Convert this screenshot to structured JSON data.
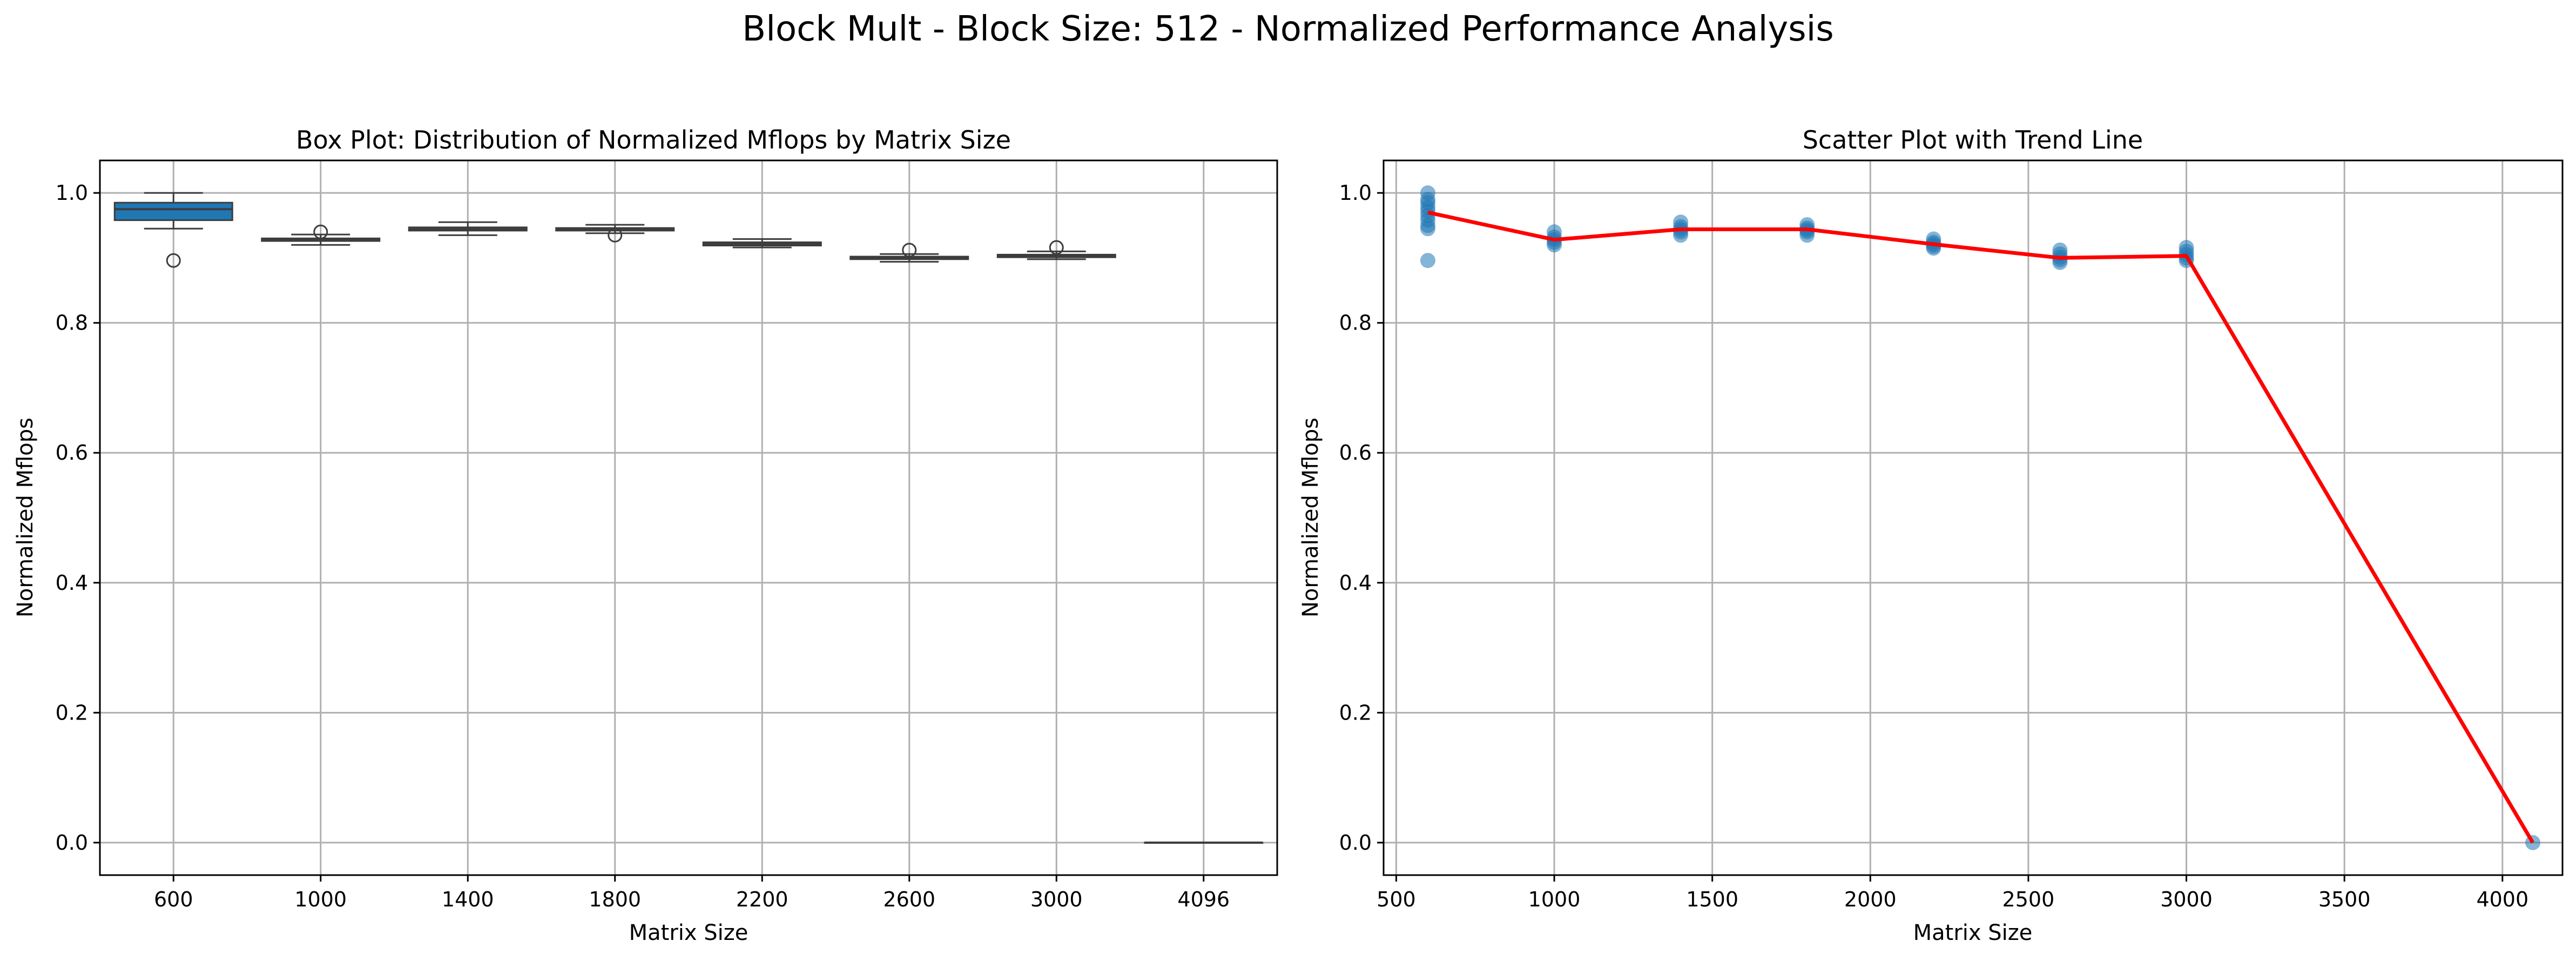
{
  "figure": {
    "title": "Block Mult - Block Size: 512 - Normalized Performance Analysis"
  },
  "chart_data": [
    {
      "type": "box",
      "title": "Box Plot: Distribution of Normalized Mflops by Matrix Size",
      "xlabel": "Matrix Size",
      "ylabel": "Normalized Mflops",
      "ylim": [
        -0.05,
        1.05
      ],
      "yticks": [
        "0.0",
        "0.2",
        "0.4",
        "0.6",
        "0.8",
        "1.0"
      ],
      "grid": true,
      "box_color": "#1f77b4",
      "categories": [
        "600",
        "1000",
        "1400",
        "1800",
        "2200",
        "2600",
        "3000",
        "4096"
      ],
      "boxes": [
        {
          "category": "600",
          "whisker_low": 0.945,
          "q1": 0.958,
          "median": 0.975,
          "q3": 0.985,
          "whisker_high": 1.0,
          "outliers": [
            0.896
          ]
        },
        {
          "category": "1000",
          "whisker_low": 0.92,
          "q1": 0.926,
          "median": 0.928,
          "q3": 0.93,
          "whisker_high": 0.936,
          "outliers": [
            0.94
          ]
        },
        {
          "category": "1400",
          "whisker_low": 0.935,
          "q1": 0.942,
          "median": 0.944,
          "q3": 0.947,
          "whisker_high": 0.955,
          "outliers": []
        },
        {
          "category": "1800",
          "whisker_low": 0.938,
          "q1": 0.942,
          "median": 0.944,
          "q3": 0.946,
          "whisker_high": 0.951,
          "outliers": [
            0.935
          ]
        },
        {
          "category": "2200",
          "whisker_low": 0.916,
          "q1": 0.919,
          "median": 0.921,
          "q3": 0.924,
          "whisker_high": 0.929,
          "outliers": []
        },
        {
          "category": "2600",
          "whisker_low": 0.894,
          "q1": 0.898,
          "median": 0.9,
          "q3": 0.902,
          "whisker_high": 0.906,
          "outliers": [
            0.912
          ]
        },
        {
          "category": "3000",
          "whisker_low": 0.898,
          "q1": 0.901,
          "median": 0.903,
          "q3": 0.905,
          "whisker_high": 0.91,
          "outliers": [
            0.916
          ]
        },
        {
          "category": "4096",
          "whisker_low": 0.0,
          "q1": 0.0,
          "median": 0.0,
          "q3": 0.0,
          "whisker_high": 0.0,
          "outliers": []
        }
      ]
    },
    {
      "type": "scatter",
      "title": "Scatter Plot with Trend Line",
      "xlabel": "Matrix Size",
      "ylabel": "Normalized Mflops",
      "xlim": [
        460,
        4190
      ],
      "ylim": [
        -0.05,
        1.05
      ],
      "xticks": [
        "500",
        "1000",
        "1500",
        "2000",
        "2500",
        "3000",
        "3500",
        "4000"
      ],
      "yticks": [
        "0.0",
        "0.2",
        "0.4",
        "0.6",
        "0.8",
        "1.0"
      ],
      "grid": true,
      "point_color": "#1f77b4",
      "trend_color": "#ff0000",
      "points": [
        {
          "x": 600,
          "y": 1.0
        },
        {
          "x": 600,
          "y": 0.99
        },
        {
          "x": 600,
          "y": 0.985
        },
        {
          "x": 600,
          "y": 0.978
        },
        {
          "x": 600,
          "y": 0.972
        },
        {
          "x": 600,
          "y": 0.965
        },
        {
          "x": 600,
          "y": 0.958
        },
        {
          "x": 600,
          "y": 0.95
        },
        {
          "x": 600,
          "y": 0.945
        },
        {
          "x": 600,
          "y": 0.896
        },
        {
          "x": 1000,
          "y": 0.94
        },
        {
          "x": 1000,
          "y": 0.932
        },
        {
          "x": 1000,
          "y": 0.928
        },
        {
          "x": 1000,
          "y": 0.924
        },
        {
          "x": 1000,
          "y": 0.92
        },
        {
          "x": 1400,
          "y": 0.955
        },
        {
          "x": 1400,
          "y": 0.948
        },
        {
          "x": 1400,
          "y": 0.944
        },
        {
          "x": 1400,
          "y": 0.94
        },
        {
          "x": 1400,
          "y": 0.935
        },
        {
          "x": 1800,
          "y": 0.951
        },
        {
          "x": 1800,
          "y": 0.946
        },
        {
          "x": 1800,
          "y": 0.943
        },
        {
          "x": 1800,
          "y": 0.94
        },
        {
          "x": 1800,
          "y": 0.935
        },
        {
          "x": 2200,
          "y": 0.929
        },
        {
          "x": 2200,
          "y": 0.924
        },
        {
          "x": 2200,
          "y": 0.921
        },
        {
          "x": 2200,
          "y": 0.918
        },
        {
          "x": 2200,
          "y": 0.915
        },
        {
          "x": 2600,
          "y": 0.912
        },
        {
          "x": 2600,
          "y": 0.906
        },
        {
          "x": 2600,
          "y": 0.901
        },
        {
          "x": 2600,
          "y": 0.897
        },
        {
          "x": 2600,
          "y": 0.893
        },
        {
          "x": 3000,
          "y": 0.916
        },
        {
          "x": 3000,
          "y": 0.91
        },
        {
          "x": 3000,
          "y": 0.905
        },
        {
          "x": 3000,
          "y": 0.9
        },
        {
          "x": 3000,
          "y": 0.896
        },
        {
          "x": 4096,
          "y": 0.0
        }
      ],
      "trend": {
        "x": [
          600,
          1000,
          1400,
          1800,
          2200,
          2600,
          3000,
          4096
        ],
        "y": [
          0.97,
          0.928,
          0.944,
          0.944,
          0.921,
          0.9,
          0.903,
          0.0
        ]
      }
    }
  ]
}
